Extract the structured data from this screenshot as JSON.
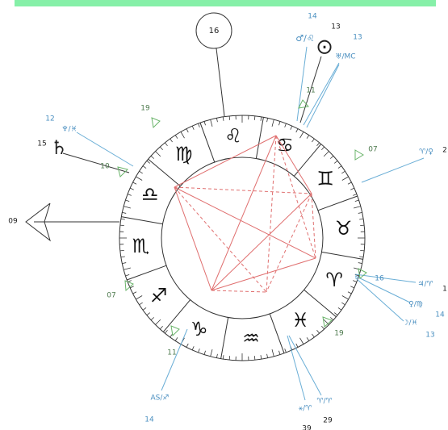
{
  "top_marker": "16",
  "axis_label": "09",
  "signs": [
    "♌",
    "♋",
    "♊",
    "♉",
    "♈",
    "♓",
    "♒",
    "♑",
    "♐",
    "♏",
    "♎",
    "♍"
  ],
  "labels": [
    {
      "text": "14"
    },
    {
      "text": "13"
    },
    {
      "text": "♂/♌"
    },
    {
      "text": "⊙"
    },
    {
      "text": "13"
    },
    {
      "text": "♅/MC"
    },
    {
      "text": "11"
    },
    {
      "text": "19"
    },
    {
      "text": "12"
    },
    {
      "text": "♆/♓"
    },
    {
      "text": "15"
    },
    {
      "text": "♄"
    },
    {
      "text": "10"
    },
    {
      "text": "07"
    },
    {
      "text": "♈/♀"
    },
    {
      "text": "2"
    },
    {
      "text": "16"
    },
    {
      "text": "♃/♈"
    },
    {
      "text": "1"
    },
    {
      "text": "♀/♍"
    },
    {
      "text": "14"
    },
    {
      "text": "☽/♓"
    },
    {
      "text": "13"
    },
    {
      "text": "07"
    },
    {
      "text": "19"
    },
    {
      "text": "11"
    },
    {
      "text": "AS/♐"
    },
    {
      "text": "14"
    },
    {
      "text": "⚹/♈"
    },
    {
      "text": "♈/♈"
    },
    {
      "text": "29"
    },
    {
      "text": "39"
    }
  ]
}
